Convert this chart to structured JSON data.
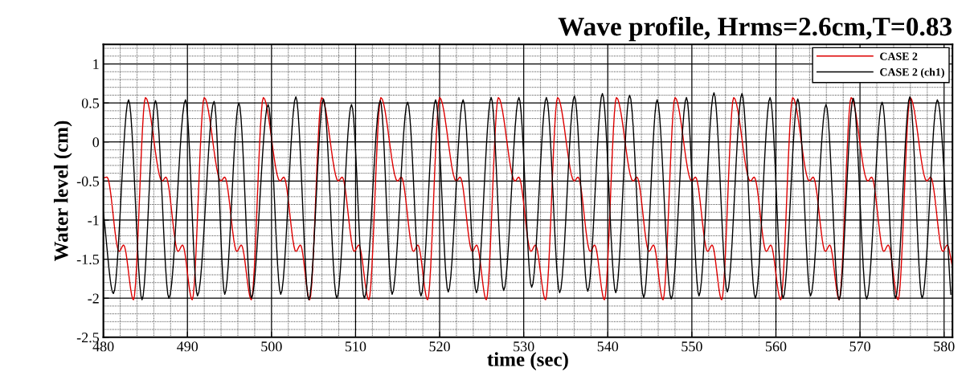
{
  "chart_data": {
    "type": "line",
    "title": "Wave profile, Hrms=2.6cm,T=0.83",
    "xlabel": "time (sec)",
    "ylabel": "Water level (cm)",
    "xlim": [
      480,
      581
    ],
    "xticks": [
      480,
      490,
      500,
      510,
      520,
      530,
      540,
      550,
      560,
      570,
      580
    ],
    "ylim": [
      -2.5,
      1.25
    ],
    "yticks": [
      -2.5,
      -2,
      -1.5,
      -1,
      -0.5,
      0,
      0.5,
      1
    ],
    "grid": true,
    "legend": "top right",
    "marker": "none",
    "line_style": "solid",
    "series": [
      {
        "name": "CASE 2",
        "color": "#dd0000",
        "x": [
          480.0,
          480.44,
          481.87,
          482.41,
          483.58,
          485.01,
          486.98,
          487.45,
          488.88,
          489.42,
          490.57,
          492.0,
          493.97,
          494.44,
          495.87,
          496.41,
          497.6,
          499.03,
          501.0,
          501.47,
          502.9,
          503.44,
          504.54,
          505.97,
          507.94,
          508.41,
          509.84,
          510.38,
          511.58,
          513.01,
          514.98,
          515.45,
          516.88,
          517.42,
          518.57,
          520.0,
          521.97,
          522.44,
          523.87,
          524.41,
          525.55,
          526.98,
          528.95,
          529.42,
          530.85,
          531.39,
          532.6,
          534.03,
          536.0,
          536.47,
          537.9,
          538.44,
          539.6,
          541.03,
          543.0,
          543.47,
          544.9,
          545.44,
          546.57,
          548.0,
          549.97,
          550.44,
          551.87,
          552.41,
          553.55,
          554.98,
          556.95,
          557.42,
          558.85,
          559.39,
          560.57,
          562.0,
          563.97,
          564.44,
          565.87,
          566.41,
          567.52,
          568.95,
          570.92,
          571.39,
          572.82,
          573.36,
          574.54,
          575.97,
          577.94,
          578.41,
          579.84,
          580.38,
          581.0
        ],
        "values": [
          -0.46,
          -0.45,
          -1.4,
          -1.32,
          -2.02,
          0.57,
          -0.5,
          -0.45,
          -1.4,
          -1.32,
          -2.02,
          0.57,
          -0.5,
          -0.45,
          -1.4,
          -1.32,
          -2.02,
          0.57,
          -0.5,
          -0.45,
          -1.4,
          -1.32,
          -2.02,
          0.57,
          -0.5,
          -0.45,
          -1.4,
          -1.32,
          -2.02,
          0.57,
          -0.5,
          -0.45,
          -1.4,
          -1.32,
          -2.02,
          0.57,
          -0.5,
          -0.45,
          -1.4,
          -1.32,
          -2.02,
          0.57,
          -0.5,
          -0.45,
          -1.4,
          -1.32,
          -2.02,
          0.57,
          -0.5,
          -0.45,
          -1.4,
          -1.32,
          -2.02,
          0.57,
          -0.5,
          -0.45,
          -1.4,
          -1.32,
          -2.02,
          0.57,
          -0.5,
          -0.45,
          -1.4,
          -1.32,
          -2.02,
          0.57,
          -0.5,
          -0.45,
          -1.4,
          -1.32,
          -2.02,
          0.57,
          -0.5,
          -0.45,
          -1.4,
          -1.32,
          -2.02,
          0.57,
          -0.5,
          -0.45,
          -1.4,
          -1.32,
          -2.02,
          0.57,
          -0.5,
          -0.45,
          -1.4,
          -1.32,
          -1.6
        ]
      },
      {
        "name": "CASE 2 (ch1)",
        "color": "#000000",
        "x": [
          480.0,
          481.2,
          483.0,
          484.6,
          486.2,
          487.8,
          489.77,
          491.2,
          493.17,
          494.44,
          496.12,
          497.61,
          499.6,
          501.1,
          502.9,
          504.44,
          506.18,
          507.77,
          509.52,
          511.04,
          512.94,
          514.35,
          516.19,
          517.78,
          519.52,
          521.02,
          522.79,
          524.38,
          526.13,
          527.62,
          529.43,
          530.95,
          532.7,
          534.28,
          536.03,
          537.62,
          539.36,
          540.95,
          542.6,
          544.28,
          545.87,
          547.55,
          549.36,
          550.85,
          552.63,
          554.22,
          555.96,
          557.55,
          559.3,
          560.85,
          562.6,
          564.12,
          565.96,
          567.52,
          569.2,
          570.79,
          572.63,
          574.22,
          575.93,
          577.39,
          579.2,
          580.8
        ],
        "values": [
          -0.9,
          -1.94,
          0.54,
          -2.02,
          0.53,
          -2.0,
          0.54,
          -1.97,
          0.52,
          -1.95,
          0.5,
          -2.0,
          0.48,
          -1.95,
          0.58,
          -2.02,
          0.55,
          -2.0,
          0.48,
          -2.0,
          0.53,
          -1.95,
          0.51,
          -1.97,
          0.54,
          -1.92,
          0.54,
          -1.93,
          0.57,
          -1.9,
          0.57,
          -1.86,
          0.57,
          -1.93,
          0.59,
          -1.91,
          0.62,
          -1.93,
          0.6,
          -1.99,
          0.54,
          -2.01,
          0.57,
          -1.97,
          0.63,
          -1.92,
          0.62,
          -2.0,
          0.57,
          -2.0,
          0.55,
          -1.97,
          0.48,
          -2.02,
          0.56,
          -2.01,
          0.51,
          -2.0,
          0.58,
          -2.0,
          0.54,
          -1.95
        ]
      }
    ]
  }
}
